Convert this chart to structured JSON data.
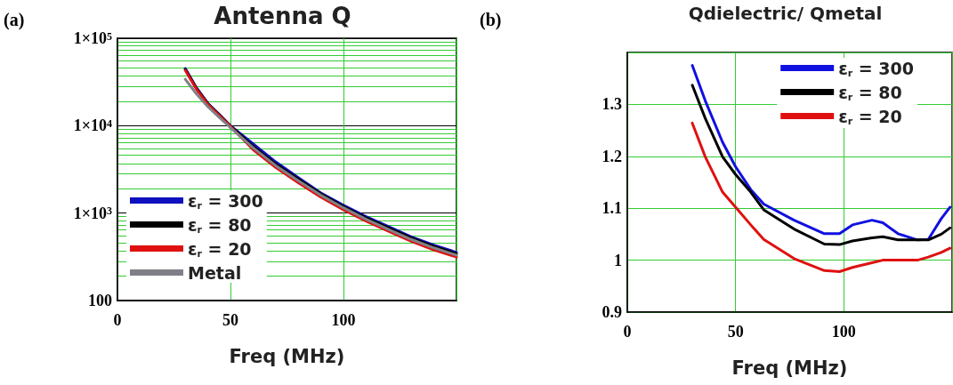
{
  "chart_data": [
    {
      "type": "line",
      "title": "Antenna Q",
      "xlabel": "Freq (MHz)",
      "annotations": [
        "(a)"
      ],
      "legend": "bottom left",
      "grid": true,
      "log": "y",
      "xlim": [
        0,
        150
      ],
      "xticks": [
        0,
        50,
        100
      ],
      "ylim": [
        100,
        100000
      ],
      "yticks": [
        {
          "value": 100,
          "label": "100"
        },
        {
          "value": 1000,
          "label": "1×10$^{3}$"
        },
        {
          "value": 10000,
          "label": "1×10$^{4}$"
        },
        {
          "value": 100000,
          "label": "1×10$^{5}$"
        }
      ],
      "x": [
        30,
        35,
        40,
        45,
        50,
        60,
        70,
        80,
        90,
        100,
        110,
        120,
        130,
        140,
        150
      ],
      "series": [
        {
          "name": "ε$_{r}$ = 300",
          "color": "#1010c0",
          "values": [
            45000,
            27000,
            18000,
            13500,
            10000,
            6200,
            3850,
            2550,
            1700,
            1230,
            910,
            700,
            535,
            430,
            355
          ]
        },
        {
          "name": "ε$_{r}$ = 80",
          "color": "#000000",
          "values": [
            44000,
            26500,
            17800,
            13300,
            9900,
            5800,
            3640,
            2440,
            1660,
            1190,
            880,
            675,
            520,
            415,
            343
          ]
        },
        {
          "name": "ε$_{r}$ = 20",
          "color": "#e01010",
          "values": [
            43000,
            26000,
            17500,
            13100,
            9800,
            5320,
            3325,
            2230,
            1520,
            1090,
            810,
            620,
            475,
            380,
            315
          ]
        },
        {
          "name": "Metal",
          "color": "#808088",
          "values": [
            34000,
            23000,
            16500,
            12500,
            9500,
            5600,
            3500,
            2350,
            1600,
            1150,
            850,
            650,
            500,
            400,
            330
          ]
        }
      ]
    },
    {
      "type": "line",
      "title": "Qdielectric/ Qmetal",
      "xlabel": "Freq (MHz)",
      "annotations": [
        "(b)"
      ],
      "legend": "top right",
      "grid": true,
      "xlim": [
        0,
        150
      ],
      "xticks": [
        0,
        50,
        100
      ],
      "ylim": [
        0.9,
        1.4
      ],
      "yticks": [
        0.9,
        1,
        1.1,
        1.2,
        1.3
      ],
      "x": [
        30,
        36,
        44,
        50,
        57,
        63,
        77,
        91,
        98,
        104,
        113,
        118,
        125,
        134,
        139,
        145,
        149
      ],
      "series": [
        {
          "name": "ε$_{r}$ = 300",
          "color": "#1010e0",
          "values": [
            1.375,
            1.307,
            1.227,
            1.18,
            1.136,
            1.108,
            1.077,
            1.051,
            1.051,
            1.068,
            1.077,
            1.072,
            1.051,
            1.039,
            1.04,
            1.08,
            1.102
          ]
        },
        {
          "name": "ε$_{r}$ = 80",
          "color": "#000000",
          "values": [
            1.337,
            1.273,
            1.199,
            1.165,
            1.131,
            1.097,
            1.06,
            1.031,
            1.03,
            1.037,
            1.043,
            1.045,
            1.039,
            1.039,
            1.039,
            1.05,
            1.062
          ]
        },
        {
          "name": "ε$_{r}$ = 20",
          "color": "#e01010",
          "values": [
            1.264,
            1.199,
            1.131,
            1.102,
            1.068,
            1.04,
            1.003,
            0.98,
            0.978,
            0.986,
            0.995,
            1.0,
            1.0,
            1.0,
            1.006,
            1.015,
            1.023
          ]
        }
      ]
    }
  ]
}
